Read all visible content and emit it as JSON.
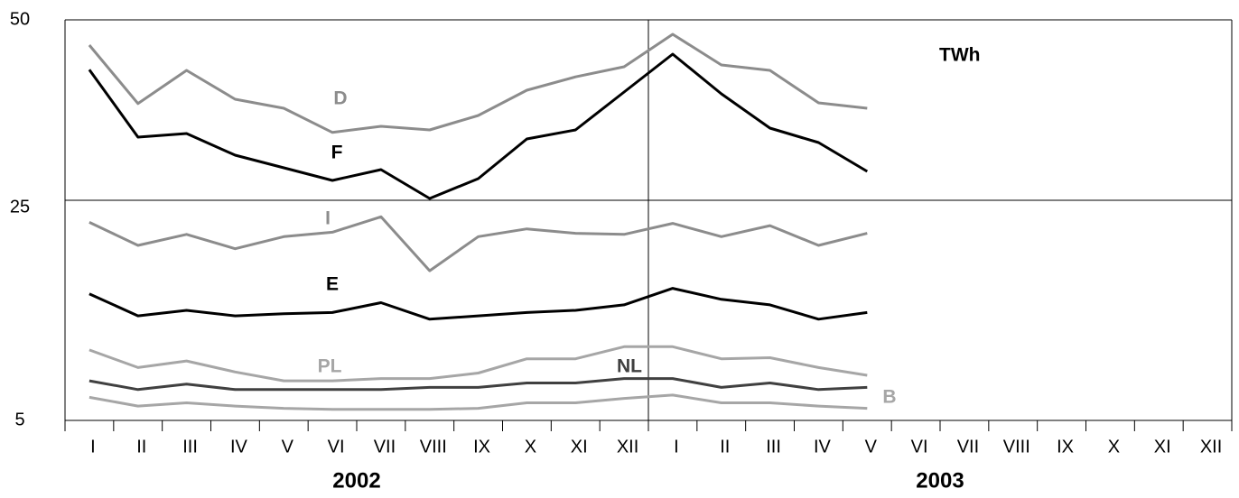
{
  "chart_data": {
    "type": "line",
    "unit_label": "TWh",
    "categories": [
      "I",
      "II",
      "III",
      "IV",
      "V",
      "VI",
      "VII",
      "VIII",
      "IX",
      "X",
      "XI",
      "XII",
      "I",
      "II",
      "III",
      "IV",
      "V",
      "VI",
      "VII",
      "VIII",
      "IX",
      "X",
      "XI",
      "XII"
    ],
    "x_groups": [
      "2002",
      "2003"
    ],
    "ylim": [
      5,
      50
    ],
    "yticks": [
      5,
      25,
      50
    ],
    "grid": true,
    "series": [
      {
        "name": "D",
        "color": "#8c8c8c",
        "values": [
          46.5,
          38.4,
          43,
          39,
          37.75,
          34.4,
          35.25,
          34.75,
          36.75,
          40.25,
          42.1,
          43.5,
          48,
          43.75,
          43,
          38.5,
          37.75,
          null,
          null,
          null,
          null,
          null,
          null,
          null
        ]
      },
      {
        "name": "F",
        "color": "#000000",
        "values": [
          43.1,
          33.75,
          34.25,
          31.25,
          29.5,
          27.75,
          29.25,
          25.25,
          28,
          33.5,
          34.75,
          40,
          45.25,
          39.75,
          35,
          33,
          29,
          null,
          null,
          null,
          null,
          null,
          null,
          null
        ]
      },
      {
        "name": "I",
        "color": "#8c8c8c",
        "values": [
          23.0,
          20.9,
          21.9,
          20.6,
          21.7,
          22.1,
          23.5,
          18.6,
          21.7,
          22.4,
          22.0,
          21.9,
          22.9,
          21.7,
          22.7,
          20.9,
          22.0,
          null,
          null,
          null,
          null,
          null,
          null,
          null
        ]
      },
      {
        "name": "E",
        "color": "#000000",
        "values": [
          16.5,
          14.5,
          15.0,
          14.5,
          14.7,
          14.8,
          15.7,
          14.2,
          14.5,
          14.8,
          15.0,
          15.5,
          17.0,
          16.0,
          15.5,
          14.2,
          14.8,
          null,
          null,
          null,
          null,
          null,
          null,
          null
        ]
      },
      {
        "name": "PL",
        "color": "#a6a6a6",
        "values": [
          11.4,
          9.8,
          10.4,
          9.4,
          8.6,
          8.6,
          8.8,
          8.8,
          9.3,
          10.6,
          10.6,
          11.7,
          11.7,
          10.6,
          10.7,
          9.8,
          9.1,
          null,
          null,
          null,
          null,
          null,
          null,
          null
        ]
      },
      {
        "name": "NL",
        "color": "#404040",
        "values": [
          8.6,
          7.8,
          8.3,
          7.8,
          7.8,
          7.8,
          7.8,
          8.0,
          8.0,
          8.4,
          8.4,
          8.8,
          8.8,
          8.0,
          8.4,
          7.8,
          8.0,
          null,
          null,
          null,
          null,
          null,
          null,
          null
        ]
      },
      {
        "name": "B",
        "color": "#a6a6a6",
        "values": [
          7.1,
          6.3,
          6.6,
          6.3,
          6.1,
          6.0,
          6.0,
          6.0,
          6.1,
          6.6,
          6.6,
          7.0,
          7.3,
          6.6,
          6.6,
          6.3,
          6.1,
          null,
          null,
          null,
          null,
          null,
          null,
          null
        ]
      }
    ]
  }
}
